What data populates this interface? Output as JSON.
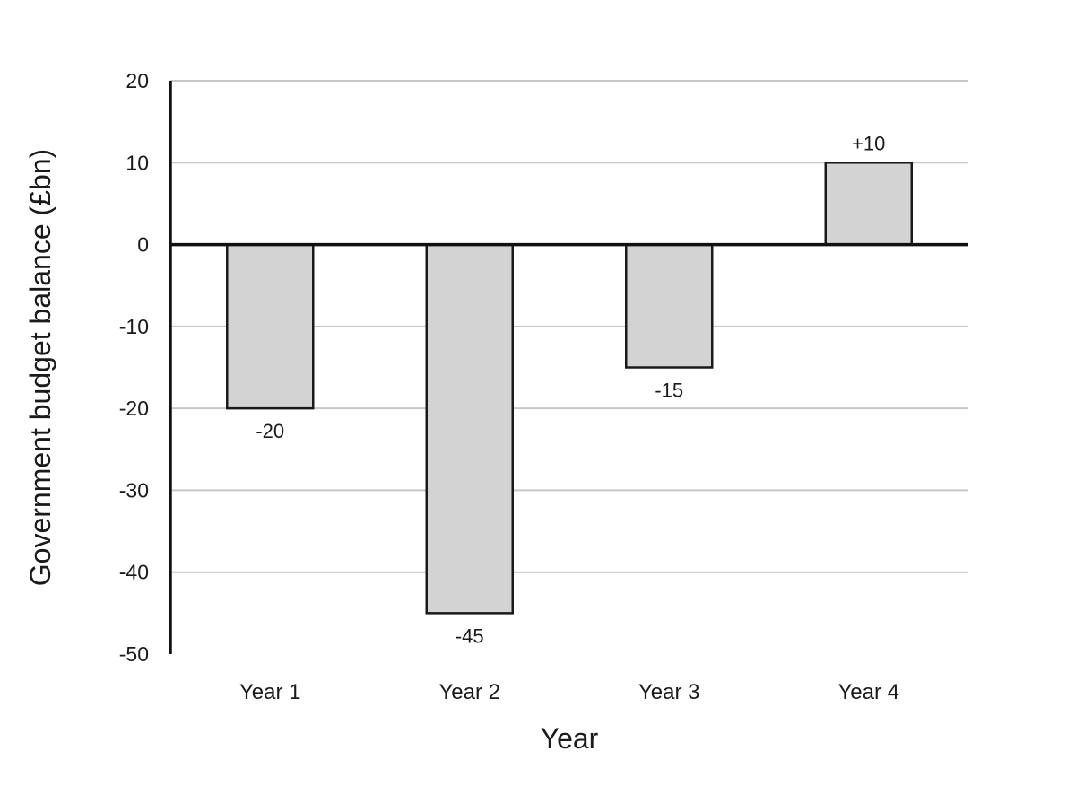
{
  "chart_data": {
    "type": "bar",
    "title": "",
    "xlabel": "Year",
    "ylabel": "Government budget balance (£bn)",
    "categories": [
      "Year 1",
      "Year 2",
      "Year 3",
      "Year 4"
    ],
    "values": [
      -20,
      -45,
      -15,
      10
    ],
    "data_labels": [
      "-20",
      "-45",
      "-15",
      "+10"
    ],
    "ylim": [
      -50,
      20
    ],
    "yticks": [
      20,
      10,
      0,
      -10,
      -20,
      -30,
      -40,
      -50
    ],
    "ytick_labels": [
      "20",
      "10",
      "0",
      "-10",
      "-20",
      "-30",
      "-40",
      "-50"
    ],
    "grid": true,
    "legend": "none",
    "colors": {
      "bar_fill": "#d3d3d3",
      "bar_stroke": "#1a1a1a",
      "grid": "#c8c8c8",
      "axis": "#111111"
    }
  }
}
